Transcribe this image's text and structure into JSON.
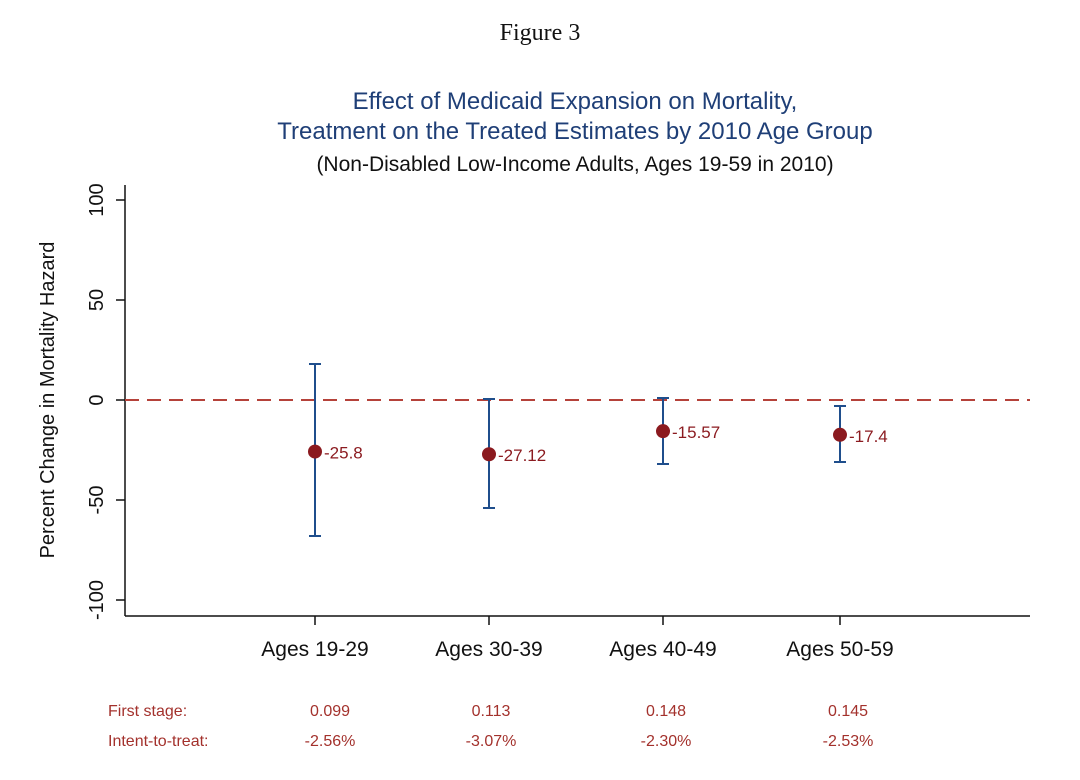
{
  "figure_label": "Figure 3",
  "chart_data": {
    "type": "scatter",
    "title_lines": [
      "Effect of Medicaid Expansion on Mortality,",
      "Treatment on the Treated Estimates by 2010 Age Group"
    ],
    "subtitle": "(Non-Disabled Low-Income Adults, Ages 19-59 in 2010)",
    "xlabel": "",
    "ylabel": "Percent Change in Mortality Hazard",
    "ylim": [
      -105,
      105
    ],
    "yticks": [
      {
        "value": -100,
        "label": "-100"
      },
      {
        "value": -50,
        "label": "-50"
      },
      {
        "value": 0,
        "label": "0"
      },
      {
        "value": 50,
        "label": "50"
      },
      {
        "value": 100,
        "label": "100"
      }
    ],
    "categories": [
      "Ages 19-29",
      "Ages 30-39",
      "Ages 40-49",
      "Ages 50-59"
    ],
    "points": [
      {
        "category": "Ages 19-29",
        "estimate": -25.8,
        "label": "-25.8",
        "ci_low": -68,
        "ci_high": 18
      },
      {
        "category": "Ages 30-39",
        "estimate": -27.12,
        "label": "-27.12",
        "ci_low": -54,
        "ci_high": 0.5
      },
      {
        "category": "Ages 40-49",
        "estimate": -15.57,
        "label": "-15.57",
        "ci_low": -32,
        "ci_high": 1
      },
      {
        "category": "Ages 50-59",
        "estimate": -17.4,
        "label": "-17.4",
        "ci_low": -31,
        "ci_high": -3
      }
    ],
    "reference_line": {
      "y": 0,
      "style": "dashed"
    },
    "grid": false,
    "colors": {
      "point": "#8b1a1f",
      "error_bar": "#1f4e8c",
      "reference_line": "#b5423a",
      "axis": "#111111",
      "title": "#1f3f77",
      "footnote": "#a3312c"
    }
  },
  "footnotes": {
    "first_stage_label": "First stage:",
    "first_stage_values": [
      "0.099",
      "0.113",
      "0.148",
      "0.145"
    ],
    "itt_label": "Intent-to-treat:",
    "itt_values": [
      "-2.56%",
      "-3.07%",
      "-2.30%",
      "-2.53%"
    ]
  }
}
